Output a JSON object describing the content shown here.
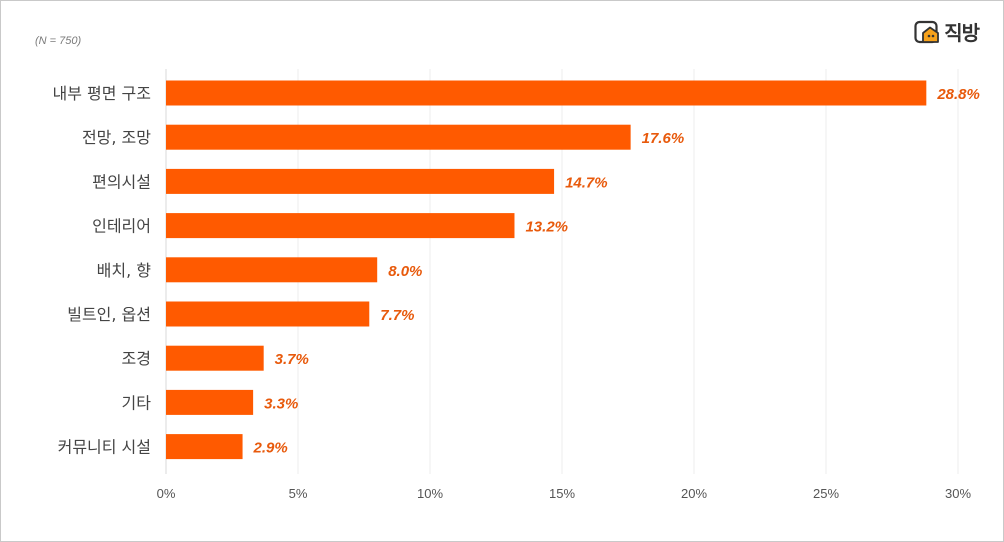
{
  "note": "(N = 750)",
  "brand": {
    "name": "직방",
    "accent": "#F26A00"
  },
  "chart_data": {
    "type": "bar",
    "orientation": "horizontal",
    "title": "",
    "xlabel": "",
    "ylabel": "",
    "categories": [
      "내부 평면 구조",
      "전망, 조망",
      "편의시설",
      "인테리어",
      "배치, 향",
      "빌트인, 옵션",
      "조경",
      "기타",
      "커뮤니티 시설"
    ],
    "values": [
      28.8,
      17.6,
      14.7,
      13.2,
      8.0,
      7.7,
      3.7,
      3.3,
      2.9
    ],
    "value_labels": [
      "28.8%",
      "17.6%",
      "14.7%",
      "13.2%",
      "8.0%",
      "7.7%",
      "3.7%",
      "3.3%",
      "2.9%"
    ],
    "xlim": [
      0,
      30
    ],
    "xticks": [
      0,
      5,
      10,
      15,
      20,
      25,
      30
    ],
    "xtick_labels": [
      "0%",
      "5%",
      "10%",
      "15%",
      "20%",
      "25%",
      "30%"
    ],
    "grid": true,
    "bar_color": "#FF5A00",
    "label_color": "#E85A0C"
  }
}
